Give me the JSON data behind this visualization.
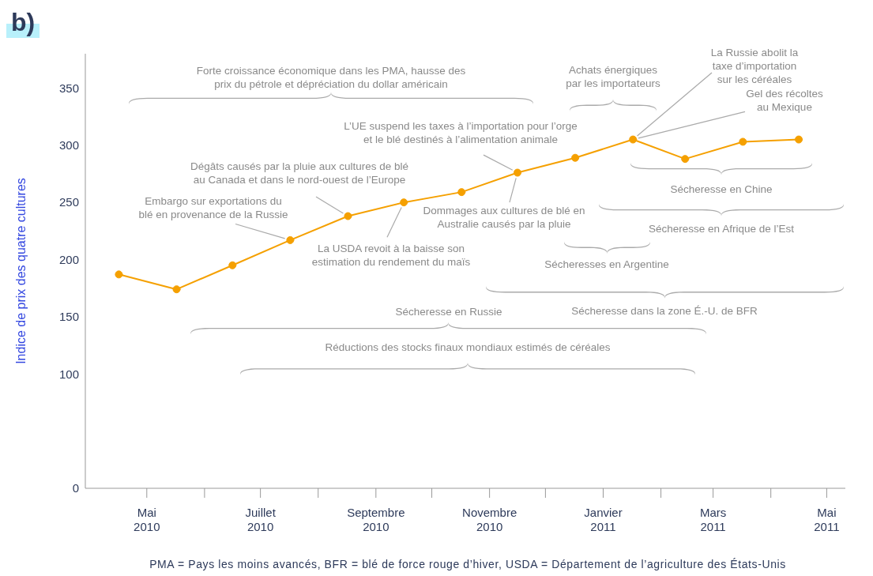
{
  "chart_data": {
    "type": "line",
    "title": "b)",
    "ylabel": "Indice de prix des quatre cultures",
    "x": [
      "2010-04-30",
      "2010-05-31",
      "2010-06-30",
      "2010-07-31",
      "2010-08-31",
      "2010-09-30",
      "2010-10-31",
      "2010-11-30",
      "2010-12-31",
      "2011-01-31",
      "2011-02-28",
      "2011-03-31",
      "2011-04-30"
    ],
    "series": [
      {
        "color": "#f5a000",
        "values": [
          187,
          174,
          195,
          217,
          238,
          250,
          259,
          276,
          289,
          305,
          288,
          303,
          305
        ]
      }
    ],
    "xlim": [
      "2010-04-12",
      "2011-05-25"
    ],
    "xticks": [
      {
        "value": "2010-05-15",
        "label": "Mai\n2010"
      },
      {
        "value": "2010-06-15",
        "label": null
      },
      {
        "value": "2010-07-15",
        "label": "Juillet\n2010"
      },
      {
        "value": "2010-08-15",
        "label": null
      },
      {
        "value": "2010-09-15",
        "label": "Septembre\n2010"
      },
      {
        "value": "2010-10-15",
        "label": null
      },
      {
        "value": "2010-11-15",
        "label": "Novembre\n2010"
      },
      {
        "value": "2010-12-15",
        "label": null
      },
      {
        "value": "2011-01-15",
        "label": "Janvier\n2011"
      },
      {
        "value": "2011-02-15",
        "label": null
      },
      {
        "value": "2011-03-15",
        "label": "Mars\n2011"
      },
      {
        "value": "2011-04-15",
        "label": null
      },
      {
        "value": "2011-05-15",
        "label": "Mai\n2011"
      }
    ],
    "ylim": [
      0,
      380
    ],
    "yticks": [
      0,
      100,
      150,
      200,
      250,
      300,
      350
    ],
    "marker": "circle",
    "line_style": "solid",
    "annotations": [
      "Forte croissance économique dans les PMA, hausse des prix du pétrole et dépréciation du dollar américain",
      "Achats énergiques par les importateurs",
      {
        "text": "La Russie abolit la taxe d’importation sur les céréales",
        "x": "2011-01-31",
        "y": 305
      },
      {
        "text": "Gel des récoltes au Mexique",
        "x": "2011-01-31",
        "y": 305
      },
      {
        "text": "L’UE suspend les taxes à l’importation pour l’orge et le blé destinés à l’alimentation animale",
        "x": "2010-11-30",
        "y": 276
      },
      {
        "text": "Dégâts causés par la pluie aux cultures de blé au Canada et dans le nord-ouest de l’Europe",
        "x": "2010-08-31",
        "y": 238
      },
      {
        "text": "Embargo sur exportations du blé en provenance de la Russie",
        "x": "2010-07-31",
        "y": 217
      },
      {
        "text": "Dommages aux cultures de blé en Australie causés par la pluie",
        "x": "2010-11-30",
        "y": 276
      },
      {
        "text": "La USDA revoit à la baisse son estimation du rendement du maïs",
        "x": "2010-09-30",
        "y": 250
      },
      "Sécheresse en Chine",
      "Sécheresse en Afrique de l’Est",
      "Sécheresses en Argentine",
      "Sécheresse dans la zone É.-U. de BFR",
      "Sécheresse en Russie",
      "Réductions des stocks finaux mondiaux estimés de céréales",
      "PMA = Pays les moins avancés, BFR = blé de force rouge d’hiver, USDA = Département de l’agriculture des États-Unis"
    ]
  }
}
